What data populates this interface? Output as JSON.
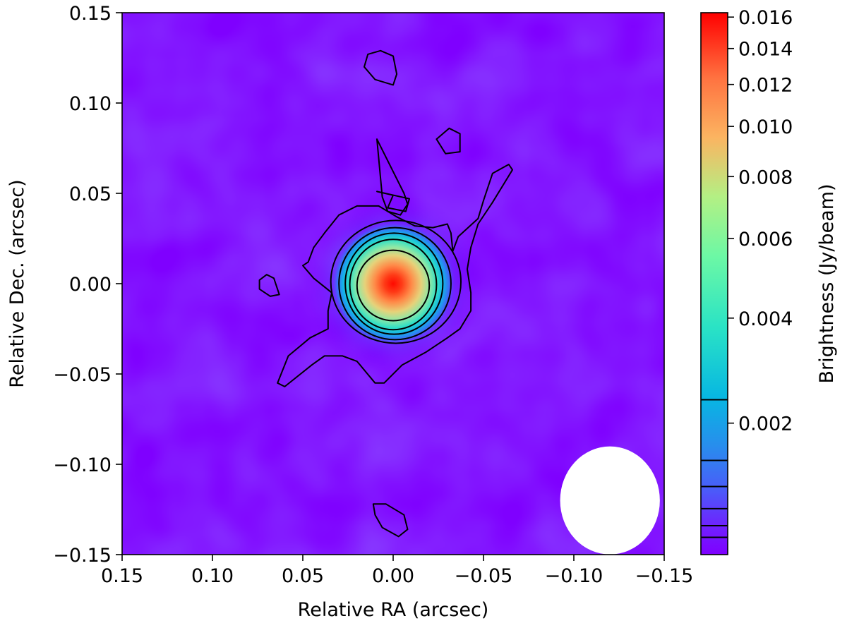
{
  "chart_data": {
    "type": "heatmap",
    "title": "",
    "xlabel": "Relative RA (arcsec)",
    "ylabel": "Relative Dec. (arcsec)",
    "xlim": [
      0.15,
      -0.15
    ],
    "ylim": [
      -0.15,
      0.15
    ],
    "x_ticks": [
      "0.15",
      "0.10",
      "0.05",
      "0.00",
      "−0.05",
      "−0.10",
      "−0.15"
    ],
    "x_tick_values": [
      0.15,
      0.1,
      0.05,
      0.0,
      -0.05,
      -0.1,
      -0.15
    ],
    "y_ticks": [
      "0.15",
      "0.10",
      "0.05",
      "0.00",
      "−0.05",
      "−0.10",
      "−0.15"
    ],
    "y_tick_values": [
      0.15,
      0.1,
      0.05,
      0.0,
      -0.05,
      -0.1,
      -0.15
    ],
    "colormap": "rainbow",
    "background_color": "#7f00ff",
    "source": {
      "ra": 0.0,
      "dec": 0.0,
      "peak": 0.0163
    },
    "colorbar": {
      "label": "Brightness (Jy/beam)",
      "scale": "asinh",
      "range": [
        0.0,
        0.0163
      ],
      "ticks": [
        "0.002",
        "0.004",
        "0.006",
        "0.008",
        "0.010",
        "0.012",
        "0.014",
        "0.016"
      ],
      "tick_values": [
        0.002,
        0.004,
        0.006,
        0.008,
        0.01,
        0.012,
        0.014,
        0.016
      ],
      "contour_marks": [
        0.00025,
        0.00042,
        0.00067,
        0.001,
        0.0014,
        0.0024
      ]
    },
    "contour_levels": [
      0.00025,
      0.00042,
      0.00067,
      0.001,
      0.0014,
      0.0024
    ],
    "beam": {
      "ra": -0.12,
      "dec": -0.12,
      "major": 0.023,
      "minor": 0.023,
      "color": "#ffffff"
    },
    "outer_contour": [
      [
        0.05,
        0.01
      ],
      [
        0.047,
        0.012
      ],
      [
        0.044,
        0.02
      ],
      [
        0.038,
        0.028
      ],
      [
        0.03,
        0.038
      ],
      [
        0.02,
        0.043
      ],
      [
        0.008,
        0.043
      ],
      [
        -0.002,
        0.037
      ],
      [
        -0.012,
        0.032
      ],
      [
        -0.022,
        0.031
      ],
      [
        -0.03,
        0.033
      ],
      [
        -0.032,
        0.028
      ],
      [
        -0.033,
        0.018
      ],
      [
        -0.036,
        0.026
      ],
      [
        -0.047,
        0.036
      ],
      [
        -0.05,
        0.046
      ],
      [
        -0.055,
        0.061
      ],
      [
        -0.064,
        0.066
      ],
      [
        -0.066,
        0.063
      ],
      [
        -0.055,
        0.045
      ],
      [
        -0.047,
        0.033
      ],
      [
        -0.043,
        0.02
      ],
      [
        -0.041,
        0.008
      ],
      [
        -0.043,
        -0.005
      ],
      [
        -0.043,
        -0.015
      ],
      [
        -0.037,
        -0.025
      ],
      [
        -0.03,
        -0.03
      ],
      [
        -0.018,
        -0.038
      ],
      [
        -0.005,
        -0.045
      ],
      [
        0.005,
        -0.055
      ],
      [
        0.01,
        -0.055
      ],
      [
        0.02,
        -0.043
      ],
      [
        0.028,
        -0.04
      ],
      [
        0.038,
        -0.04
      ],
      [
        0.045,
        -0.045
      ],
      [
        0.06,
        -0.057
      ],
      [
        0.064,
        -0.055
      ],
      [
        0.058,
        -0.04
      ],
      [
        0.052,
        -0.035
      ],
      [
        0.046,
        -0.03
      ],
      [
        0.036,
        -0.025
      ],
      [
        0.036,
        -0.015
      ],
      [
        0.034,
        -0.005
      ],
      [
        0.044,
        0.003
      ],
      [
        0.05,
        0.01
      ]
    ],
    "islands": [
      [
        [
          0.074,
          0.002
        ],
        [
          0.07,
          0.005
        ],
        [
          0.066,
          0.003
        ],
        [
          0.063,
          -0.006
        ],
        [
          0.068,
          -0.007
        ],
        [
          0.074,
          -0.003
        ]
      ],
      [
        [
          0.009,
          0.08
        ],
        [
          0.006,
          0.048
        ],
        [
          0.003,
          0.04
        ],
        [
          -0.004,
          0.038
        ],
        [
          -0.008,
          0.044
        ],
        [
          -0.006,
          0.05
        ],
        [
          0.0,
          0.0
        ],
        [
          0.0,
          0.0
        ]
      ],
      [
        [
          0.009,
          0.051
        ],
        [
          0.0,
          0.049
        ],
        [
          0.003,
          0.042
        ],
        [
          -0.007,
          0.04
        ],
        [
          -0.009,
          0.047
        ]
      ],
      [
        [
          -0.024,
          0.08
        ],
        [
          -0.031,
          0.086
        ],
        [
          -0.037,
          0.083
        ],
        [
          -0.037,
          0.073
        ],
        [
          -0.029,
          0.072
        ]
      ],
      [
        [
          0.016,
          0.12
        ],
        [
          0.014,
          0.127
        ],
        [
          0.007,
          0.129
        ],
        [
          0.0,
          0.126
        ],
        [
          -0.002,
          0.116
        ],
        [
          0.0,
          0.11
        ],
        [
          0.01,
          0.113
        ]
      ],
      [
        [
          0.011,
          -0.122
        ],
        [
          0.004,
          -0.122
        ],
        [
          -0.006,
          -0.128
        ],
        [
          -0.008,
          -0.136
        ],
        [
          -0.003,
          -0.14
        ],
        [
          0.006,
          -0.135
        ],
        [
          0.01,
          -0.128
        ]
      ]
    ],
    "inner_contours": [
      {
        "level": 0.00042,
        "rx": 0.036,
        "ry": 0.034,
        "cx": -0.0015,
        "cy": 0.001
      },
      {
        "level": 0.00067,
        "rx": 0.031,
        "ry": 0.031,
        "cx": -0.001,
        "cy": 0.0
      },
      {
        "level": 0.001,
        "rx": 0.027,
        "ry": 0.028,
        "cx": -0.0005,
        "cy": 0.0
      },
      {
        "level": 0.0014,
        "rx": 0.024,
        "ry": 0.025,
        "cx": 0.0,
        "cy": -0.0005
      },
      {
        "level": 0.0024,
        "rx": 0.02,
        "ry": 0.0195,
        "cx": 0.0,
        "cy": -0.001
      }
    ]
  }
}
